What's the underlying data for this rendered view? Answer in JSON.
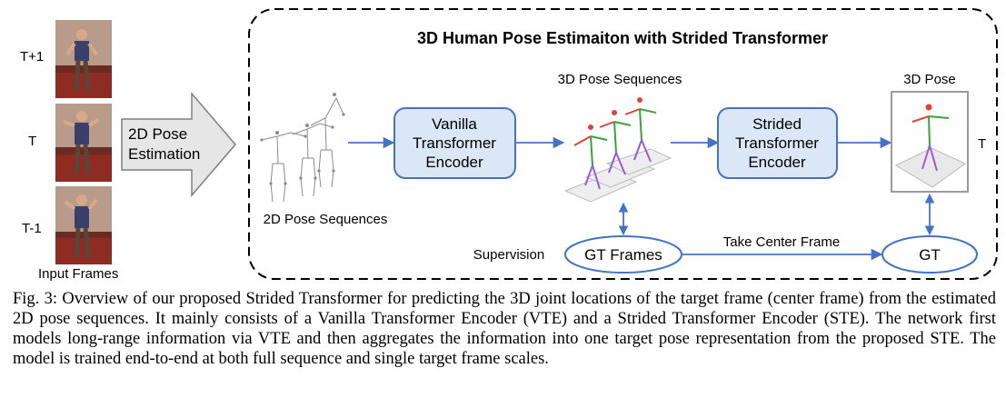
{
  "diagram": {
    "title": "3D Human Pose Estimaiton with Strided Transformer",
    "input": {
      "frame_labels": [
        "T+1",
        "T",
        "T-1"
      ],
      "caption": "Input Frames"
    },
    "pose_estimation_arrow": {
      "line1": "2D Pose",
      "line2": "Estimation"
    },
    "pose2d_label": "2D Pose Sequences",
    "vte_box": {
      "line1": "Vanilla",
      "line2": "Transformer",
      "line3": "Encoder"
    },
    "pose3d_seq_label": "3D Pose Sequences",
    "ste_box": {
      "line1": "Strided",
      "line2": "Transformer",
      "line3": "Encoder"
    },
    "pose3d_label": "3D Pose",
    "target_label": "T",
    "supervision_label": "Supervision",
    "gt_frames_label": "GT Frames",
    "take_center_label": "Take Center Frame",
    "gt_label": "GT",
    "colors": {
      "box_fill": "#dbe6f7",
      "box_stroke": "#4472c4",
      "arrow": "#4472c4",
      "big_arrow_fill": "#e6e6e6",
      "big_arrow_stroke": "#7f7f7f"
    }
  },
  "caption": {
    "text": "Fig. 3: Overview of our proposed Strided Transformer for predicting the 3D joint locations of the target frame (center frame) from the estimated 2D pose sequences. It mainly consists of a Vanilla Transformer Encoder (VTE) and a Strided Transformer Encoder (STE). The network first models long-range information via VTE and then aggregates the information into one target pose representation from the proposed STE. The model is trained end-to-end at both full sequence and single target frame scales."
  }
}
